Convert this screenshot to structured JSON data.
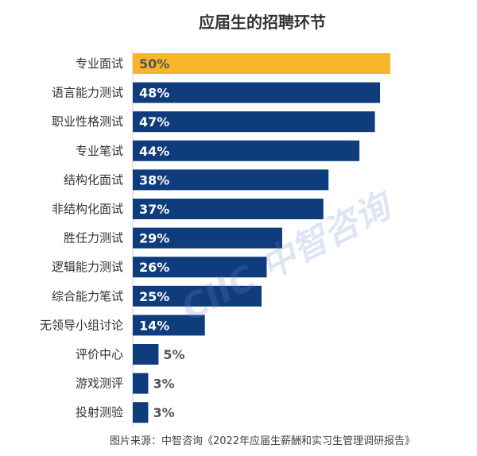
{
  "chart_data": {
    "type": "bar",
    "orientation": "horizontal",
    "title": "应届生的招聘环节",
    "categories": [
      "专业面试",
      "语言能力测试",
      "职业性格测试",
      "专业笔试",
      "结构化面试",
      "非结构化面试",
      "胜任力测试",
      "逻辑能力测试",
      "综合能力笔试",
      "无领导小组讨论",
      "评价中心",
      "游戏测评",
      "投射测验"
    ],
    "values": [
      50,
      48,
      47,
      44,
      38,
      37,
      29,
      26,
      25,
      14,
      5,
      3,
      3
    ],
    "value_labels": [
      "50%",
      "48%",
      "47%",
      "44%",
      "38%",
      "37%",
      "29%",
      "26%",
      "25%",
      "14%",
      "5%",
      "3%",
      "3%"
    ],
    "xlim": [
      0,
      50
    ],
    "grid": false,
    "colors": {
      "highlight": "#F7B52C",
      "bar": "#0F3C7C",
      "label_inside": "#FFFFFF",
      "label_on_highlight": "#555555",
      "label_outside": "#555555"
    }
  },
  "source": "图片来源：中智咨询《2022年应届生薪酬和实习生管理调研报告》",
  "watermark": "CIIC 中智咨询"
}
